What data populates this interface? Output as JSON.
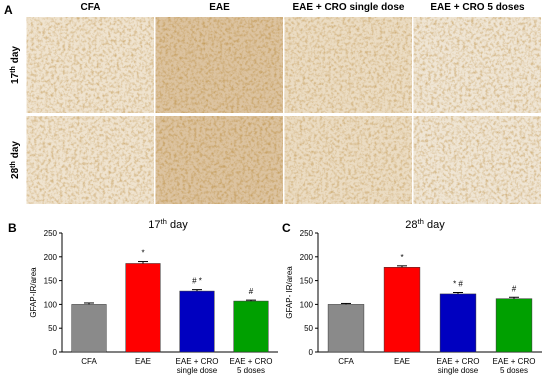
{
  "panel_a": {
    "label": "A",
    "columns": [
      "CFA",
      "EAE",
      "EAE + CRO single dose",
      "EAE + CRO 5 doses"
    ],
    "rows": [
      {
        "number": "17",
        "sup": "th",
        "rest": "day"
      },
      {
        "number": "28",
        "sup": "th",
        "rest": "day"
      }
    ]
  },
  "chart_data": [
    {
      "type": "bar",
      "panel": "B",
      "title": {
        "number": "17",
        "sup": "th",
        "rest": "day"
      },
      "ylabel": "GFAP-IR/area",
      "categories": [
        [
          "CFA"
        ],
        [
          "EAE"
        ],
        [
          "EAE + CRO",
          "single dose"
        ],
        [
          "EAE + CRO",
          "5 doses"
        ]
      ],
      "values": [
        100,
        186,
        128,
        107
      ],
      "errors": [
        3,
        4,
        3,
        2
      ],
      "markers": [
        null,
        "*",
        "# *",
        "#"
      ],
      "colors": [
        "#8a8a8a",
        "#ff0000",
        "#0000c0",
        "#00a000"
      ],
      "ylim": [
        0,
        250
      ],
      "yticks": [
        0,
        50,
        100,
        150,
        200,
        250
      ]
    },
    {
      "type": "bar",
      "panel": "C",
      "title": {
        "number": "28",
        "sup": "th",
        "rest": "day"
      },
      "ylabel": "GFAP- IR/area",
      "categories": [
        [
          "CFA"
        ],
        [
          "EAE"
        ],
        [
          "EAE + CRO",
          "single dose"
        ],
        [
          "EAE + CRO",
          "5 doses"
        ]
      ],
      "values": [
        100,
        178,
        122,
        112
      ],
      "errors": [
        2,
        3,
        3,
        3
      ],
      "markers": [
        null,
        "*",
        "* #",
        "#"
      ],
      "colors": [
        "#8a8a8a",
        "#ff0000",
        "#0000c0",
        "#00a000"
      ],
      "ylim": [
        0,
        250
      ],
      "yticks": [
        0,
        50,
        100,
        150,
        200,
        250
      ]
    }
  ]
}
